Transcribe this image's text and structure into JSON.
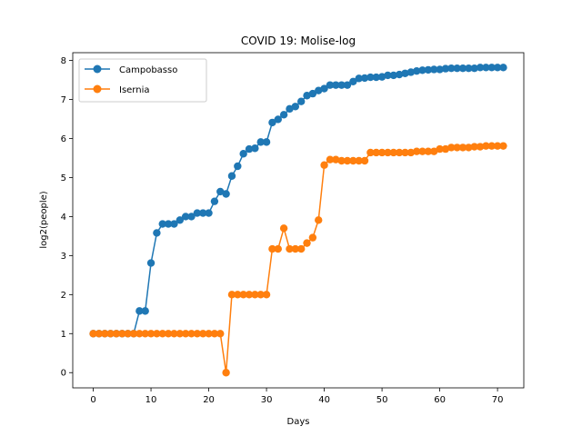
{
  "chart_data": {
    "type": "line",
    "title": "COVID 19: Molise-log",
    "xlabel": "Days",
    "ylabel": "log2(people)",
    "xlim": [
      -3.55,
      74.55
    ],
    "ylim": [
      -0.39,
      8.2
    ],
    "xticks": [
      0,
      10,
      20,
      30,
      40,
      50,
      60,
      70
    ],
    "yticks": [
      0,
      1,
      2,
      3,
      4,
      5,
      6,
      7,
      8
    ],
    "grid": false,
    "legend_position": "top-left",
    "series": [
      {
        "name": "Campobasso",
        "color": "#1f77b4",
        "x": [
          0,
          1,
          2,
          3,
          4,
          5,
          6,
          7,
          8,
          9,
          10,
          11,
          12,
          13,
          14,
          15,
          16,
          17,
          18,
          19,
          20,
          21,
          22,
          23,
          24,
          25,
          26,
          27,
          28,
          29,
          30,
          31,
          32,
          33,
          34,
          35,
          36,
          37,
          38,
          39,
          40,
          41,
          42,
          43,
          44,
          45,
          46,
          47,
          48,
          49,
          50,
          51,
          52,
          53,
          54,
          55,
          56,
          57,
          58,
          59,
          60,
          61,
          62,
          63,
          64,
          65,
          66,
          67,
          68,
          69,
          70,
          71
        ],
        "values": [
          1,
          1,
          1,
          1,
          1,
          1,
          1,
          1,
          1.58,
          1.58,
          2.81,
          3.58,
          3.81,
          3.81,
          3.81,
          3.91,
          4.0,
          4.0,
          4.09,
          4.09,
          4.09,
          4.39,
          4.64,
          4.58,
          5.04,
          5.29,
          5.61,
          5.73,
          5.75,
          5.91,
          5.91,
          6.41,
          6.49,
          6.61,
          6.76,
          6.82,
          6.95,
          7.1,
          7.15,
          7.23,
          7.28,
          7.37,
          7.37,
          7.37,
          7.37,
          7.46,
          7.54,
          7.55,
          7.57,
          7.57,
          7.58,
          7.62,
          7.62,
          7.64,
          7.67,
          7.7,
          7.73,
          7.75,
          7.76,
          7.77,
          7.77,
          7.79,
          7.8,
          7.8,
          7.8,
          7.8,
          7.8,
          7.82,
          7.82,
          7.82,
          7.82,
          7.82
        ]
      },
      {
        "name": "Isernia",
        "color": "#ff7f0e",
        "x": [
          0,
          1,
          2,
          3,
          4,
          5,
          6,
          7,
          8,
          9,
          10,
          11,
          12,
          13,
          14,
          15,
          16,
          17,
          18,
          19,
          20,
          21,
          22,
          23,
          24,
          25,
          26,
          27,
          28,
          29,
          30,
          31,
          32,
          33,
          34,
          35,
          36,
          37,
          38,
          39,
          40,
          41,
          42,
          43,
          44,
          45,
          46,
          47,
          48,
          49,
          50,
          51,
          52,
          53,
          54,
          55,
          56,
          57,
          58,
          59,
          60,
          61,
          62,
          63,
          64,
          65,
          66,
          67,
          68,
          69,
          70,
          71
        ],
        "values": [
          1,
          1,
          1,
          1,
          1,
          1,
          1,
          1,
          1,
          1,
          1,
          1,
          1,
          1,
          1,
          1,
          1,
          1,
          1,
          1,
          1,
          1,
          1,
          0,
          2,
          2,
          2,
          2,
          2,
          2,
          2,
          3.17,
          3.17,
          3.7,
          3.17,
          3.17,
          3.17,
          3.32,
          3.46,
          3.91,
          5.32,
          5.46,
          5.46,
          5.43,
          5.43,
          5.43,
          5.43,
          5.43,
          5.64,
          5.64,
          5.64,
          5.64,
          5.64,
          5.64,
          5.64,
          5.64,
          5.67,
          5.67,
          5.67,
          5.67,
          5.73,
          5.73,
          5.77,
          5.77,
          5.77,
          5.77,
          5.79,
          5.79,
          5.81,
          5.81,
          5.81,
          5.81
        ]
      }
    ]
  }
}
